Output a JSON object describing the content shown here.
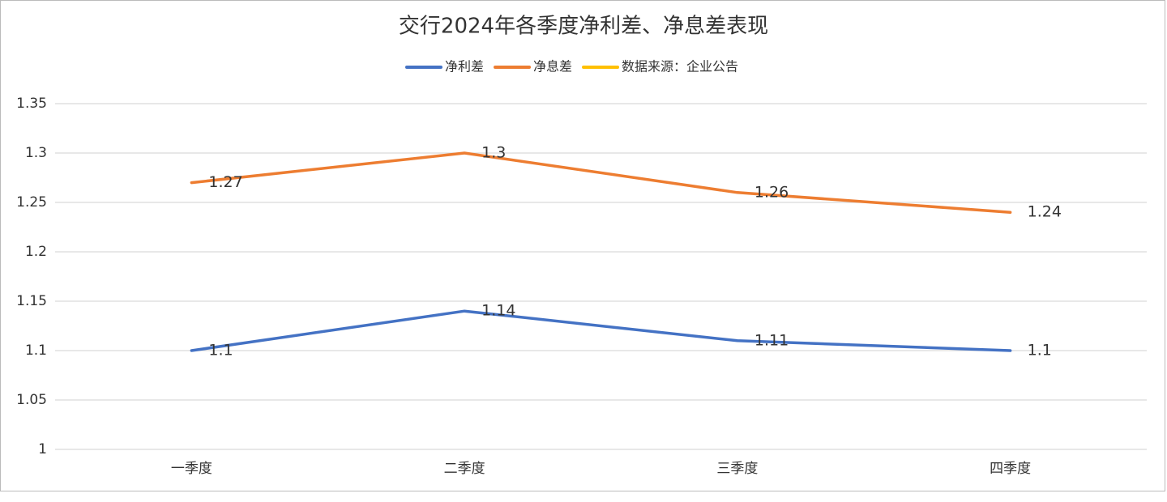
{
  "chart_data": {
    "type": "line",
    "title": "交行2024年各季度净利差、净息差表现",
    "categories": [
      "一季度",
      "二季度",
      "三季度",
      "四季度"
    ],
    "series": [
      {
        "name": "净利差",
        "color": "#4472c4",
        "values": [
          1.1,
          1.14,
          1.11,
          1.1
        ]
      },
      {
        "name": "净息差",
        "color": "#ed7d31",
        "values": [
          1.27,
          1.3,
          1.26,
          1.24
        ]
      },
      {
        "name": "数据来源：企业公告",
        "color": "#ffc000",
        "values": [
          null,
          null,
          null,
          null
        ]
      }
    ],
    "ylim": [
      1,
      1.35
    ],
    "yticks": [
      1,
      1.05,
      1.1,
      1.15,
      1.2,
      1.25,
      1.3,
      1.35
    ],
    "grid": true,
    "legend": "top",
    "data_labels": true
  }
}
